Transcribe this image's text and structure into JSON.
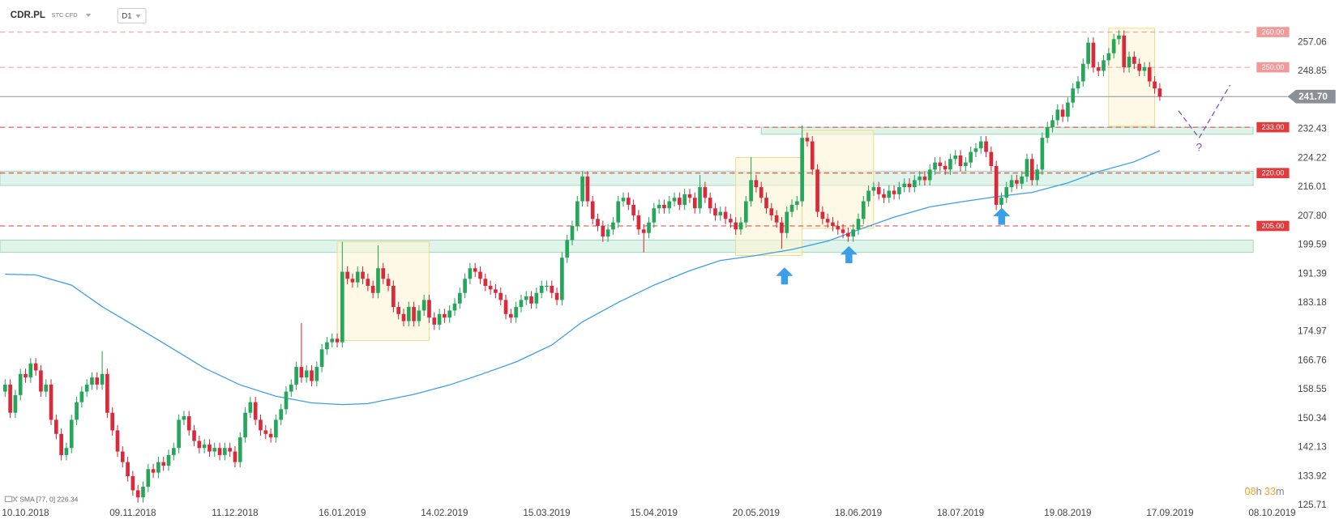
{
  "chart_data": {
    "type": "candlestick",
    "symbol": "CDR.PL",
    "instrument": "STC CFD",
    "interval": "D1",
    "bull_color": "#26a65b",
    "bear_color": "#d9293a",
    "xlim": [
      -1,
      251
    ],
    "ylim": [
      125.1,
      269.1
    ],
    "xticks": [
      {
        "value": 4,
        "label": "10.10.2018"
      },
      {
        "value": 25,
        "label": "09.11.2018"
      },
      {
        "value": 45,
        "label": "11.12.2018"
      },
      {
        "value": 66,
        "label": "16.01.2019"
      },
      {
        "value": 86,
        "label": "14.02.2019"
      },
      {
        "value": 106,
        "label": "15.03.2019"
      },
      {
        "value": 127,
        "label": "15.04.2019"
      },
      {
        "value": 147,
        "label": "20.05.2019"
      },
      {
        "value": 167,
        "label": "18.06.2019"
      },
      {
        "value": 187,
        "label": "18.07.2019"
      },
      {
        "value": 208,
        "label": "19.08.2019"
      },
      {
        "value": 228,
        "label": "17.09.2019"
      },
      {
        "value": 248,
        "label": "08.10.2019"
      }
    ],
    "yticks": [
      257.06,
      248.85,
      232.43,
      224.22,
      216.01,
      {
        "value": 207.8,
        "label": "207.80"
      },
      199.59,
      191.39,
      183.18,
      174.97,
      166.76,
      158.55,
      150.34,
      142.13,
      133.92,
      125.71
    ],
    "open": [
      158,
      160,
      152,
      157,
      163,
      162,
      166,
      164,
      158,
      160,
      150,
      146,
      140,
      142,
      150,
      155,
      158,
      160,
      162,
      160,
      163,
      152,
      147,
      141,
      138,
      134,
      130,
      128,
      131,
      136,
      135,
      138,
      137,
      140,
      142,
      150,
      151,
      147,
      144,
      142,
      143,
      141,
      142,
      140,
      142,
      141,
      138,
      145,
      152,
      155,
      150,
      147,
      146,
      145,
      150,
      153,
      158,
      160,
      165,
      162,
      164,
      161,
      165,
      170,
      172,
      173,
      172,
      192,
      190,
      189,
      192,
      190,
      188,
      186,
      193,
      190,
      188,
      182,
      180,
      178,
      182,
      178,
      181,
      184,
      179,
      177,
      180,
      179,
      181,
      183,
      186,
      190,
      193,
      192,
      190,
      188,
      187,
      186,
      184,
      180,
      179,
      182,
      184,
      185,
      183,
      186,
      188,
      188,
      186,
      184,
      196,
      201,
      205,
      212,
      219,
      212,
      207,
      205,
      202,
      204,
      206,
      212,
      213,
      211,
      208,
      204,
      203,
      206,
      210,
      211,
      210,
      212,
      213,
      211,
      214,
      213,
      210,
      216,
      213,
      210,
      208,
      209,
      207,
      206,
      204,
      206,
      212,
      218,
      216,
      213,
      210,
      208,
      206,
      203,
      209,
      211,
      212,
      230,
      229,
      221,
      209,
      207,
      206,
      205,
      204,
      203,
      202,
      204,
      207,
      212,
      215,
      216,
      214,
      213,
      215,
      214,
      216,
      217,
      216,
      218,
      219,
      218,
      221,
      223,
      222,
      221,
      224,
      225,
      222,
      223,
      226,
      227,
      229,
      226,
      222,
      211,
      213,
      216,
      218,
      217,
      219,
      224,
      218,
      221,
      230,
      233,
      235,
      238,
      236,
      240,
      244,
      246,
      251,
      257,
      250,
      249,
      252,
      254,
      258,
      259,
      250,
      253,
      251,
      249,
      250,
      246,
      244
    ],
    "high": [
      161.5,
      161.5,
      158.5,
      164.5,
      164.5,
      167.5,
      167.5,
      165.5,
      161.5,
      161.5,
      151.5,
      147.5,
      143.5,
      151.5,
      156.5,
      159.5,
      161.5,
      163.5,
      163.5,
      169.5,
      164.5,
      153.5,
      148.5,
      142.5,
      139.5,
      135.5,
      131.5,
      132.5,
      137.5,
      137.5,
      139.5,
      139.5,
      141.5,
      143.5,
      151.5,
      152.5,
      152.5,
      148.5,
      145.5,
      144.5,
      144.5,
      143.5,
      143.5,
      143.5,
      143.5,
      142.5,
      146.5,
      153.5,
      156.5,
      156.5,
      151.5,
      148.5,
      147.5,
      151.5,
      154.5,
      159.5,
      161.5,
      166.5,
      177.5,
      165.5,
      165.5,
      166.5,
      171.5,
      173.5,
      174.5,
      174.5,
      200.5,
      193.5,
      191.5,
      193.5,
      193.5,
      191.5,
      189.5,
      199.5,
      194.5,
      191.5,
      189.5,
      183.5,
      181.5,
      183.5,
      183.5,
      182.5,
      185.5,
      185.5,
      180.5,
      181.5,
      181.5,
      182.5,
      184.5,
      187.5,
      191.5,
      194.5,
      194.5,
      193.5,
      191.5,
      189.5,
      188.5,
      187.5,
      185.5,
      181.5,
      183.5,
      185.5,
      186.5,
      186.5,
      187.5,
      189.5,
      189.5,
      189.5,
      187.5,
      197.5,
      202.5,
      206.5,
      213.5,
      220.5,
      220.5,
      213.5,
      208.5,
      206.5,
      205.5,
      207.5,
      213.5,
      214.5,
      214.5,
      212.5,
      209.5,
      205.5,
      207.5,
      211.5,
      212.5,
      212.5,
      213.5,
      214.5,
      214.5,
      215.5,
      215.5,
      214.5,
      219.5,
      217.5,
      214.5,
      211.5,
      210.5,
      210.5,
      208.5,
      207.5,
      207.5,
      213.5,
      224.5,
      219.5,
      217.5,
      214.5,
      211.5,
      209.5,
      207.5,
      210.5,
      212.5,
      213.5,
      233.5,
      231.5,
      230.5,
      222.5,
      210.5,
      208.5,
      207.5,
      206.5,
      205.5,
      204.5,
      205.5,
      208.5,
      213.5,
      216.5,
      217.5,
      217.5,
      215.5,
      216.5,
      216.5,
      217.5,
      218.5,
      218.5,
      219.5,
      220.5,
      220.5,
      222.5,
      224.5,
      224.5,
      223.5,
      225.5,
      226.5,
      226.5,
      224.5,
      227.5,
      228.5,
      230.5,
      230.5,
      227.5,
      223.5,
      214.5,
      217.5,
      219.5,
      219.5,
      220.5,
      225.5,
      225.5,
      222.5,
      231.5,
      234.5,
      236.5,
      239.5,
      239.5,
      241.5,
      245.5,
      247.5,
      252.5,
      258.5,
      258.5,
      251.5,
      253.5,
      255.5,
      259.5,
      260.5,
      260.5,
      254.5,
      254.5,
      252.5,
      251.5,
      251.5,
      247.5,
      245.5
    ],
    "low": [
      156.5,
      150.5,
      150.5,
      155.5,
      160.5,
      160.5,
      162.5,
      156.5,
      156.5,
      148.5,
      144.5,
      138.5,
      138.5,
      140.5,
      148.5,
      153.5,
      156.5,
      158.5,
      158.5,
      158.5,
      150.5,
      145.5,
      139.5,
      136.5,
      132.5,
      128.5,
      126.5,
      126.5,
      129.5,
      133.5,
      133.5,
      135.5,
      135.5,
      138.5,
      140.5,
      148.5,
      145.5,
      142.5,
      140.5,
      140.5,
      139.5,
      139.5,
      138.5,
      138.5,
      139.5,
      136.5,
      136.5,
      143.5,
      150.5,
      148.5,
      145.5,
      144.5,
      143.5,
      143.5,
      148.5,
      151.5,
      156.5,
      158.5,
      160.5,
      160.5,
      159.5,
      159.5,
      163.5,
      168.5,
      170.5,
      170.5,
      170.5,
      188.5,
      187.5,
      187.5,
      188.5,
      186.5,
      184.5,
      184.5,
      188.5,
      186.5,
      180.5,
      178.5,
      176.5,
      176.5,
      176.5,
      176.5,
      179.5,
      177.5,
      175.5,
      175.5,
      177.5,
      177.5,
      179.5,
      181.5,
      184.5,
      188.5,
      190.5,
      188.5,
      186.5,
      185.5,
      184.5,
      182.5,
      178.5,
      177.5,
      177.5,
      180.5,
      182.5,
      181.5,
      181.5,
      184.5,
      186.5,
      184.5,
      182.5,
      182.5,
      194.5,
      199.5,
      203.5,
      210.5,
      210.5,
      205.5,
      203.5,
      200.5,
      200.5,
      202.5,
      204.5,
      210.5,
      209.5,
      206.5,
      202.5,
      197.5,
      201.5,
      204.5,
      208.5,
      208.5,
      208.5,
      210.5,
      209.5,
      209.5,
      211.5,
      208.5,
      208.5,
      211.5,
      208.5,
      206.5,
      206.5,
      205.5,
      204.5,
      202.5,
      202.5,
      204.5,
      210.5,
      214.5,
      211.5,
      208.5,
      206.5,
      204.5,
      198.5,
      201.5,
      207.5,
      209.5,
      210.5,
      227.5,
      219.5,
      207.5,
      205.5,
      204.5,
      203.5,
      202.5,
      201.5,
      200.5,
      200.5,
      202.5,
      205.5,
      210.5,
      213.5,
      212.5,
      211.5,
      211.5,
      212.5,
      212.5,
      214.5,
      214.5,
      214.5,
      216.5,
      216.5,
      216.5,
      219.5,
      220.5,
      219.5,
      219.5,
      222.5,
      220.5,
      220.5,
      221.5,
      224.5,
      225.5,
      224.5,
      220.5,
      209.5,
      209.5,
      211.5,
      214.5,
      215.5,
      215.5,
      217.5,
      216.5,
      216.5,
      219.5,
      228.5,
      231.5,
      233.5,
      234.5,
      234.5,
      238.5,
      242.5,
      244.5,
      249.5,
      248.5,
      247.5,
      247.5,
      250.5,
      252.5,
      256.5,
      248.5,
      248.5,
      249.5,
      247.5,
      247.5,
      244.5,
      242.5,
      240.5
    ],
    "close": [
      160,
      152,
      157,
      163,
      162,
      166,
      164,
      158,
      160,
      150,
      146,
      140,
      142,
      150,
      155,
      158,
      160,
      162,
      160,
      163,
      152,
      147,
      141,
      138,
      134,
      130,
      128,
      131,
      136,
      135,
      138,
      137,
      140,
      142,
      150,
      151,
      147,
      144,
      142,
      143,
      141,
      142,
      140,
      142,
      141,
      138,
      145,
      152,
      155,
      150,
      147,
      146,
      145,
      150,
      153,
      158,
      160,
      165,
      162,
      164,
      161,
      165,
      170,
      172,
      173,
      172,
      192,
      190,
      189,
      192,
      190,
      188,
      186,
      193,
      190,
      188,
      182,
      180,
      178,
      182,
      178,
      181,
      184,
      179,
      177,
      180,
      179,
      181,
      183,
      186,
      190,
      193,
      192,
      190,
      188,
      187,
      186,
      184,
      180,
      179,
      182,
      184,
      185,
      183,
      186,
      188,
      188,
      186,
      184,
      196,
      201,
      205,
      212,
      219,
      212,
      207,
      205,
      202,
      204,
      206,
      212,
      213,
      211,
      208,
      204,
      203,
      206,
      210,
      211,
      210,
      212,
      213,
      211,
      214,
      213,
      210,
      216,
      213,
      210,
      208,
      209,
      207,
      206,
      204,
      206,
      212,
      218,
      216,
      213,
      210,
      208,
      206,
      203,
      209,
      211,
      212,
      230,
      229,
      221,
      209,
      207,
      206,
      205,
      204,
      203,
      202,
      204,
      207,
      212,
      215,
      216,
      214,
      213,
      215,
      214,
      216,
      217,
      216,
      218,
      219,
      218,
      221,
      223,
      222,
      221,
      224,
      225,
      222,
      223,
      226,
      227,
      229,
      226,
      222,
      211,
      213,
      216,
      218,
      217,
      219,
      224,
      218,
      221,
      230,
      233,
      235,
      238,
      236,
      240,
      244,
      246,
      251,
      257,
      250,
      249,
      252,
      254,
      258,
      259,
      250,
      253,
      251,
      249,
      250,
      246,
      244,
      241.7
    ],
    "sma": {
      "label": "SMA [77, 0] 226.34",
      "color": "#3a9ee8",
      "x": [
        0,
        6,
        13,
        19,
        26,
        33,
        39,
        46,
        53,
        60,
        66,
        71,
        80,
        87,
        93,
        100,
        107,
        113,
        120,
        127,
        134,
        140,
        147,
        154,
        161,
        167,
        174,
        181,
        187,
        194,
        201,
        208,
        214,
        221,
        226
      ],
      "values": [
        191.3,
        191.1,
        188.2,
        182.1,
        176.1,
        170.0,
        164.7,
        159.9,
        156.7,
        154.8,
        154.3,
        154.6,
        157.2,
        159.9,
        162.8,
        166.4,
        171.2,
        177.8,
        183.3,
        188.2,
        192.3,
        195.2,
        196.6,
        198.3,
        200.7,
        203.9,
        207.5,
        210.4,
        211.8,
        213.3,
        214.5,
        217.2,
        220.4,
        223.2,
        226.34
      ]
    },
    "levels": [
      {
        "value": 260,
        "label": "260.00",
        "color": "#f09a9a"
      },
      {
        "value": 250,
        "label": "250.00",
        "color": "#f09a9a"
      },
      {
        "value": 233,
        "label": "233.00",
        "color": "#e03c3c"
      },
      {
        "value": 220,
        "label": "220.00",
        "color": "#e03c3c"
      },
      {
        "value": 205,
        "label": "205.00",
        "color": "#e03c3c"
      }
    ],
    "last_price": {
      "value": 241.7,
      "label": "241.70",
      "color": "#8a9096"
    },
    "bands": [
      {
        "from": 148,
        "low": 231,
        "high": 233
      },
      {
        "low": 216.5,
        "high": 220.5
      },
      {
        "low": 197.5,
        "high": 201
      }
    ],
    "boxes": [
      {
        "start": 65,
        "end": 83,
        "low": 172.5,
        "high": 200.5
      },
      {
        "start": 143,
        "end": 156,
        "low": 196.6,
        "high": 224.4
      },
      {
        "start": 156,
        "end": 170,
        "low": 204.3,
        "high": 232.1
      },
      {
        "start": 216,
        "end": 225,
        "low": 233.3,
        "high": 261.1
      }
    ],
    "annotation": "?",
    "countdown": [
      "08",
      "h",
      "33",
      "m"
    ]
  }
}
